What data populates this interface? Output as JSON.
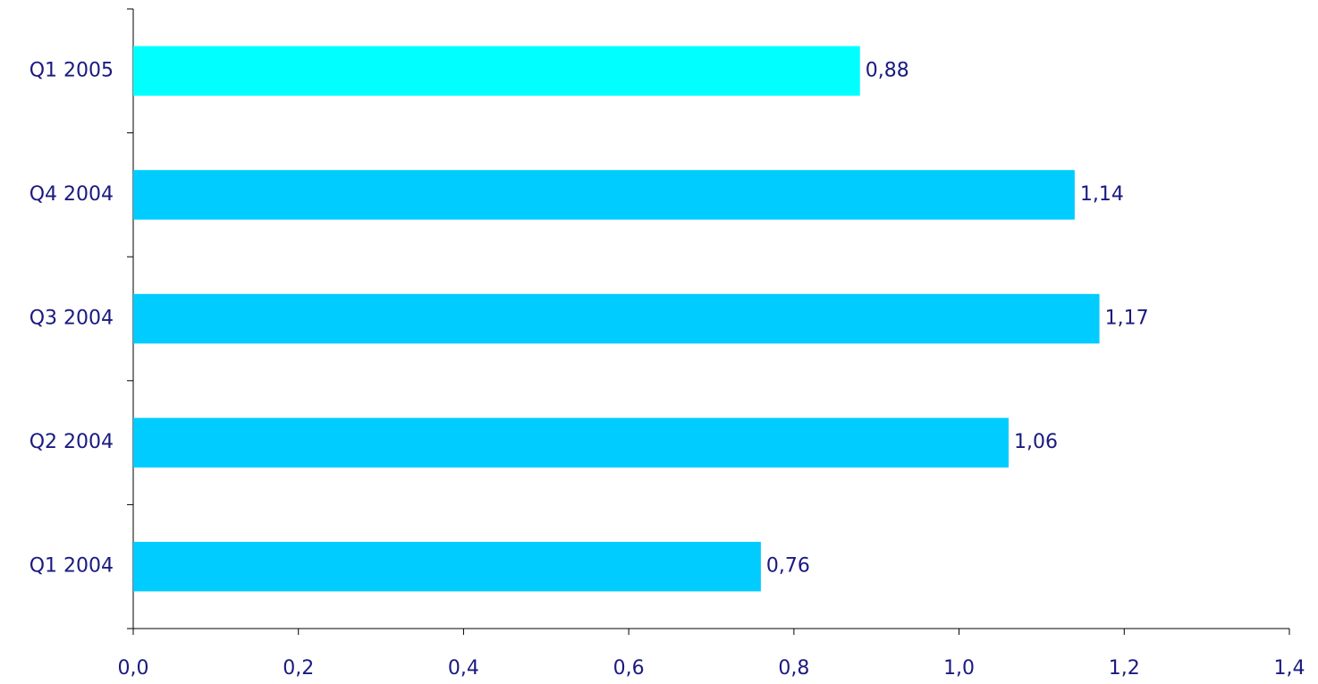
{
  "chart_data": {
    "type": "hbar",
    "categories": [
      "Q1 2005",
      "Q4 2004",
      "Q3 2004",
      "Q2 2004",
      "Q1 2004"
    ],
    "values": [
      0.88,
      1.14,
      1.17,
      1.06,
      0.76
    ],
    "value_labels": [
      "0,88",
      "1,14",
      "1,17",
      "1,06",
      "0,76"
    ],
    "colors": [
      "#00ffff",
      "#00ccff",
      "#00ccff",
      "#00ccff",
      "#00ccff"
    ],
    "xlim": [
      0,
      1.4
    ],
    "xticks": [
      {
        "value": 0,
        "label": "0,0"
      },
      {
        "value": 0.2,
        "label": "0,2"
      },
      {
        "value": 0.4,
        "label": "0,4"
      },
      {
        "value": 0.6,
        "label": "0,6"
      },
      {
        "value": 0.8,
        "label": "0,8"
      },
      {
        "value": 1.0,
        "label": "1,0"
      },
      {
        "value": 1.2,
        "label": "1,2"
      },
      {
        "value": 1.4,
        "label": "1,4"
      }
    ]
  }
}
